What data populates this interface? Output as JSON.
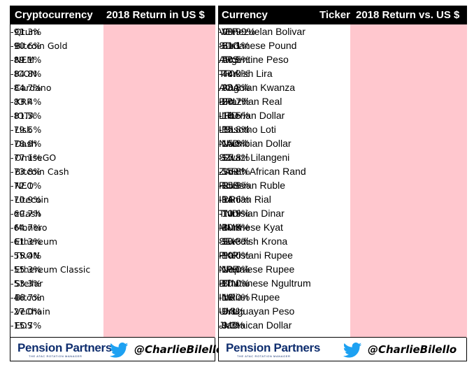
{
  "crypto": {
    "header": {
      "name": "Cryptocurrency",
      "value": "2018 Return in US $"
    },
    "rows": [
      {
        "name": "Qtum",
        "value": "-91.3%"
      },
      {
        "name": "Bitcoin Gold",
        "value": "-90.6%"
      },
      {
        "name": "NEM",
        "value": "-89.1%"
      },
      {
        "name": "ICON",
        "value": "-84.8%"
      },
      {
        "name": "Cardano",
        "value": "-84.7%"
      },
      {
        "name": "XRP",
        "value": "-83.4%"
      },
      {
        "name": "IOTA",
        "value": "-81.5%"
      },
      {
        "name": "Lisk",
        "value": "-79.5%"
      },
      {
        "name": "Dash",
        "value": "-78.8%"
      },
      {
        "name": "OmiseGO",
        "value": "-77.1%"
      },
      {
        "name": "Bitcoin Cash",
        "value": "-73.8%"
      },
      {
        "name": "NEO",
        "value": "-72.1%"
      },
      {
        "name": "Litecoin",
        "value": "-70.9%"
      },
      {
        "name": "zCash",
        "value": "-69.7%"
      },
      {
        "name": "Monero",
        "value": "-64.7%"
      },
      {
        "name": "Ethereum",
        "value": "-61.3%"
      },
      {
        "name": "TRON",
        "value": "-55.4%"
      },
      {
        "name": "Ethereum Classic",
        "value": "-55.3%"
      },
      {
        "name": "Stellar",
        "value": "-53.3%"
      },
      {
        "name": "Bitcoin",
        "value": "-46.7%"
      },
      {
        "name": "VeChain",
        "value": "-27.0%"
      },
      {
        "name": "EOS",
        "value": "-15.7%"
      }
    ]
  },
  "currency": {
    "header": {
      "name": "Currency",
      "ticker": "Ticker",
      "value": "2018 Return vs. US $"
    },
    "rows": [
      {
        "name": "Venezuelan Bolivar",
        "ticker": "VEF",
        "value": "-99.99%"
      },
      {
        "name": "Sudanese Pound",
        "ticker": "SDG",
        "value": "-61.1%"
      },
      {
        "name": "Argentine Peso",
        "ticker": "ARS",
        "value": "-50.5%"
      },
      {
        "name": "Turkish Lira",
        "ticker": "TRY",
        "value": "-44.0%"
      },
      {
        "name": "Angolan Kwanza",
        "ticker": "AOA",
        "value": "-38.8%"
      },
      {
        "name": "Brazilian Real",
        "ticker": "BRL",
        "value": "-20.7%"
      },
      {
        "name": "Liberian Dollar",
        "ticker": "LRD",
        "value": "-18.5%"
      },
      {
        "name": "Basotho Loti",
        "ticker": "LSL",
        "value": "-15.8%"
      },
      {
        "name": "Namibian Dollar",
        "ticker": "NAD",
        "value": "-15.8%"
      },
      {
        "name": "Swazi Lilangeni",
        "ticker": "SZL",
        "value": "-15.8%"
      },
      {
        "name": "South African Rand",
        "ticker": "ZAR",
        "value": "-15.8%"
      },
      {
        "name": "Russian Ruble",
        "ticker": "RUB",
        "value": "-15.3%"
      },
      {
        "name": "Iranian Rial",
        "ticker": "IRR",
        "value": "-14.6%"
      },
      {
        "name": "Tunisian Dinar",
        "ticker": "TND",
        "value": "-10.9%"
      },
      {
        "name": "Burmese Kyat",
        "ticker": "MMK",
        "value": "-10.8%"
      },
      {
        "name": "Swedish Krona",
        "ticker": "SEK",
        "value": "-10.3%"
      },
      {
        "name": "Pakistani Rupee",
        "ticker": "PKR",
        "value": "-10.0%"
      },
      {
        "name": "Nepalese Rupee",
        "ticker": "NPR",
        "value": "-10.0%"
      },
      {
        "name": "Bhutanese Ngultrum",
        "ticker": "BTN",
        "value": "-10.0%"
      },
      {
        "name": "Indian Rupee",
        "ticker": "INR",
        "value": "-10.0%"
      },
      {
        "name": "Uruguayan Peso",
        "ticker": "UYU",
        "value": "-9.8%"
      },
      {
        "name": "Jamaican Dollar",
        "ticker": "JMD",
        "value": "-9.3%"
      }
    ]
  },
  "footer": {
    "logo_text": "Pension Partners",
    "logo_tagline": "THE ATAC ROTATION MANAGER",
    "twitter_icon": "twitter-bird-icon",
    "handle": "@CharlieBilello"
  },
  "colors": {
    "header_bg": "#000000",
    "header_text": "#ffffff",
    "value_bg": "#ffc7ce",
    "value_text": "#d10000",
    "logo": "#0e2d6e",
    "twitter": "#1da1f2"
  }
}
